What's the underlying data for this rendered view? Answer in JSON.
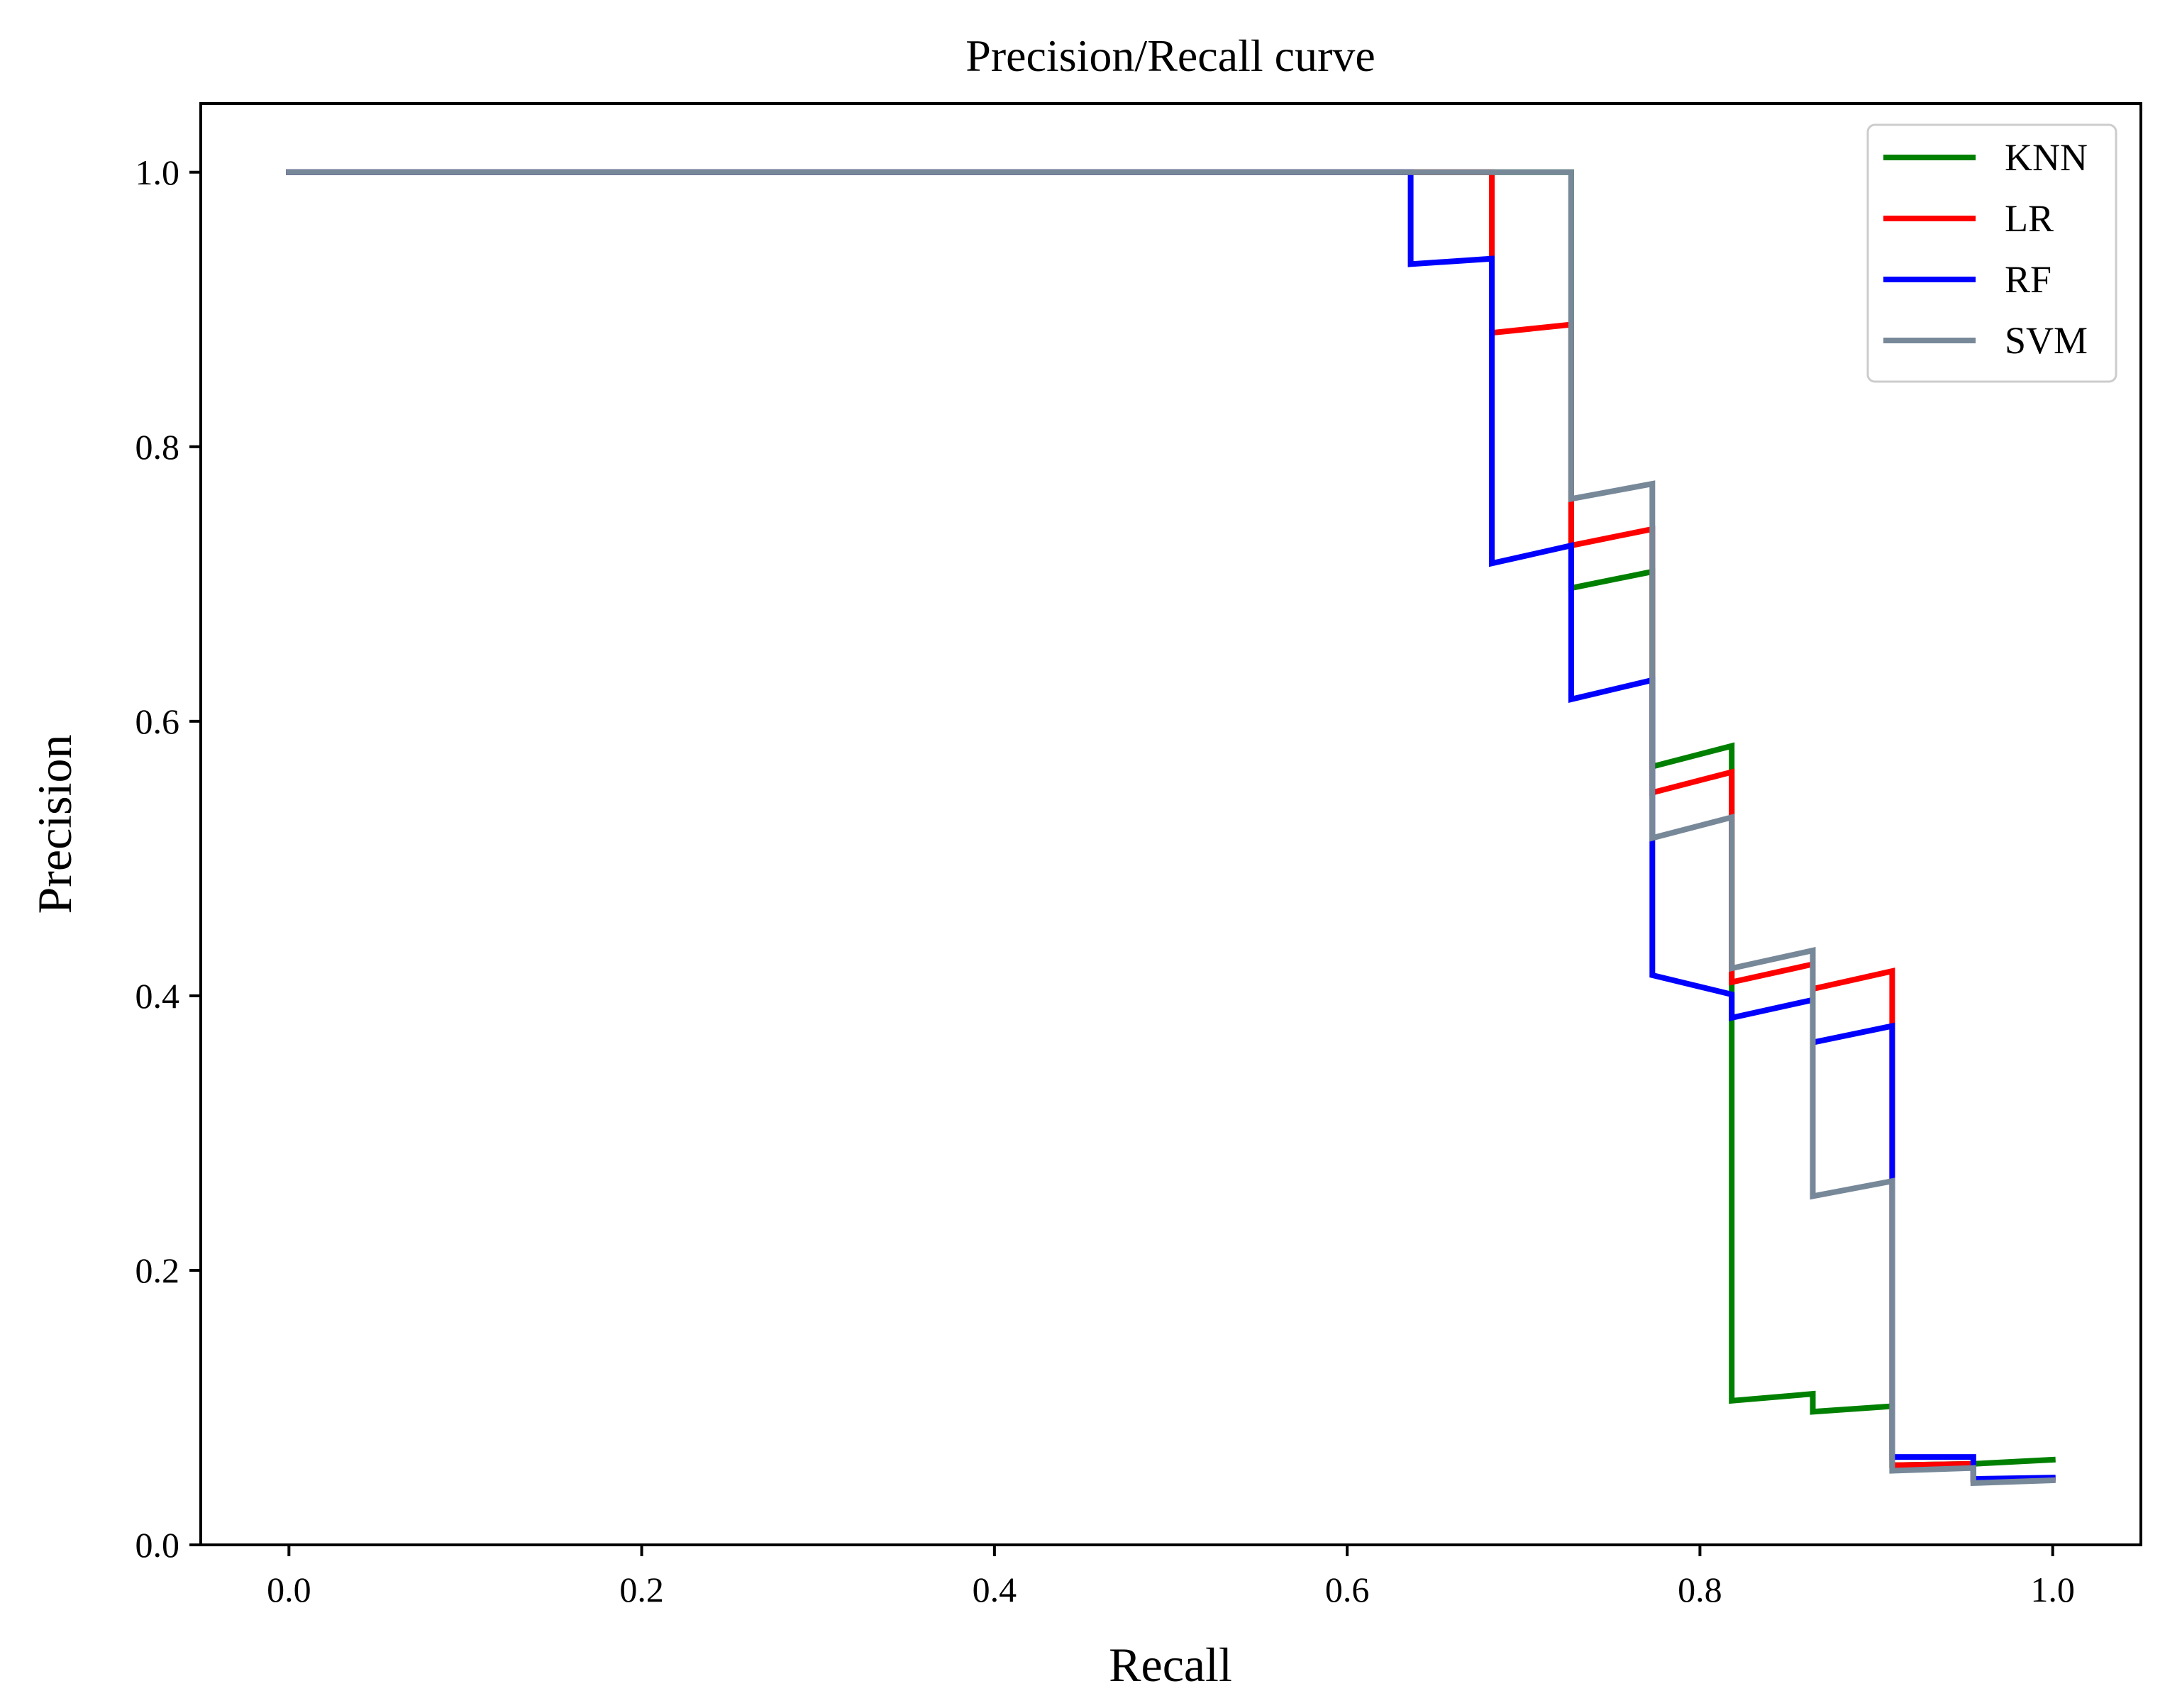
{
  "chart_data": {
    "type": "line",
    "title": "Precision/Recall curve",
    "xlabel": "Recall",
    "ylabel": "Precision",
    "xlim": [
      -0.05,
      1.05
    ],
    "ylim": [
      0.0,
      1.05
    ],
    "xticks": [
      0.0,
      0.2,
      0.4,
      0.6,
      0.8,
      1.0
    ],
    "xtick_labels": [
      "0.0",
      "0.2",
      "0.4",
      "0.6",
      "0.8",
      "1.0"
    ],
    "yticks": [
      0.0,
      0.2,
      0.4,
      0.6,
      0.8,
      1.0
    ],
    "ytick_labels": [
      "0.0",
      "0.2",
      "0.4",
      "0.6",
      "0.8",
      "1.0"
    ],
    "grid": false,
    "legend_position": "top-right",
    "series": [
      {
        "name": "KNN",
        "color": "#008000",
        "points": [
          [
            0.0,
            1.0
          ],
          [
            0.727,
            1.0
          ],
          [
            0.727,
            0.697
          ],
          [
            0.773,
            0.709
          ],
          [
            0.773,
            0.567
          ],
          [
            0.818,
            0.582
          ],
          [
            0.818,
            0.105
          ],
          [
            0.864,
            0.11
          ],
          [
            0.864,
            0.097
          ],
          [
            0.909,
            0.101
          ],
          [
            0.909,
            0.058
          ],
          [
            0.955,
            0.059
          ],
          [
            0.955,
            0.059
          ],
          [
            1.0,
            0.062
          ]
        ]
      },
      {
        "name": "LR",
        "color": "#ff0000",
        "points": [
          [
            0.0,
            1.0
          ],
          [
            0.682,
            1.0
          ],
          [
            0.682,
            0.883
          ],
          [
            0.727,
            0.889
          ],
          [
            0.727,
            0.728
          ],
          [
            0.773,
            0.74
          ],
          [
            0.773,
            0.548
          ],
          [
            0.818,
            0.563
          ],
          [
            0.818,
            0.41
          ],
          [
            0.864,
            0.423
          ],
          [
            0.864,
            0.405
          ],
          [
            0.909,
            0.418
          ],
          [
            0.909,
            0.058
          ],
          [
            0.955,
            0.059
          ],
          [
            0.955,
            0.047
          ],
          [
            1.0,
            0.048
          ]
        ]
      },
      {
        "name": "RF",
        "color": "#0000ff",
        "points": [
          [
            0.0,
            1.0
          ],
          [
            0.636,
            1.0
          ],
          [
            0.636,
            0.933
          ],
          [
            0.682,
            0.937
          ],
          [
            0.682,
            0.715
          ],
          [
            0.727,
            0.728
          ],
          [
            0.727,
            0.616
          ],
          [
            0.773,
            0.63
          ],
          [
            0.773,
            0.415
          ],
          [
            0.818,
            0.401
          ],
          [
            0.818,
            0.384
          ],
          [
            0.864,
            0.397
          ],
          [
            0.864,
            0.366
          ],
          [
            0.909,
            0.378
          ],
          [
            0.909,
            0.064
          ],
          [
            0.955,
            0.064
          ],
          [
            0.955,
            0.048
          ],
          [
            1.0,
            0.049
          ]
        ]
      },
      {
        "name": "SVM",
        "color": "#778899",
        "points": [
          [
            0.0,
            1.0
          ],
          [
            0.727,
            1.0
          ],
          [
            0.727,
            0.762
          ],
          [
            0.773,
            0.773
          ],
          [
            0.773,
            0.515
          ],
          [
            0.818,
            0.53
          ],
          [
            0.818,
            0.42
          ],
          [
            0.864,
            0.433
          ],
          [
            0.864,
            0.254
          ],
          [
            0.909,
            0.265
          ],
          [
            0.909,
            0.054
          ],
          [
            0.955,
            0.056
          ],
          [
            0.955,
            0.045
          ],
          [
            1.0,
            0.047
          ]
        ]
      }
    ]
  }
}
